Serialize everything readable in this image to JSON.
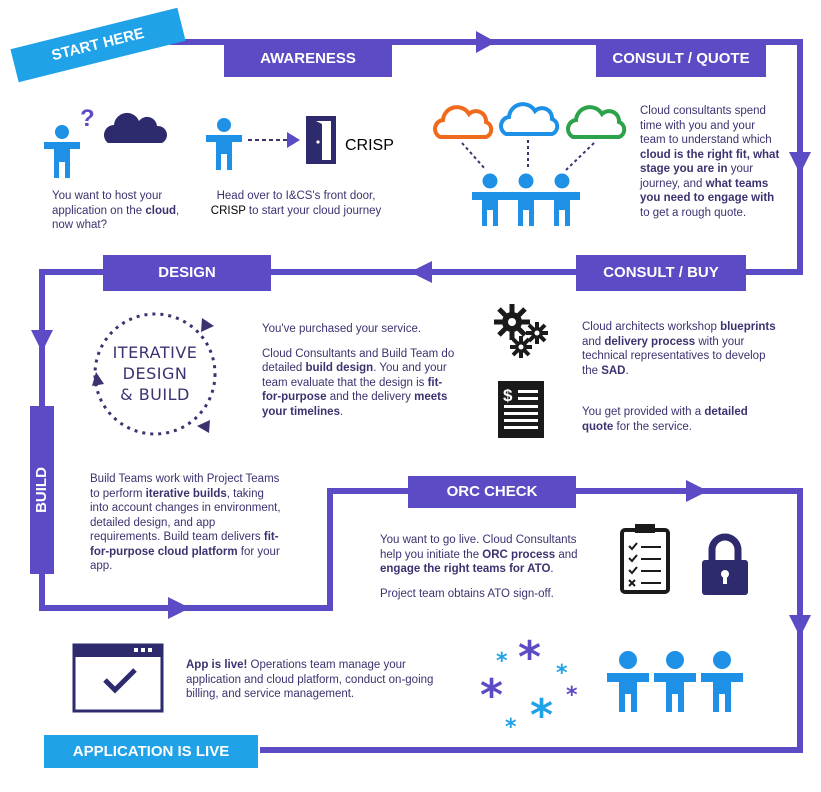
{
  "colors": {
    "purple": "#5b4bc4",
    "dark_text": "#3c3270",
    "blue": "#1e90e6",
    "cyan": "#1fa2e8",
    "orange": "#f06a1e",
    "green": "#2ca34a",
    "navy": "#2d2a6e"
  },
  "start_here": "START HERE",
  "stages": {
    "awareness": "AWARENESS",
    "consult_quote": "CONSULT / QUOTE",
    "consult_buy": "CONSULT / BUY",
    "design": "DESIGN",
    "build": "BUILD",
    "orc_check": "ORC CHECK",
    "application_live": "APPLICATION IS LIVE"
  },
  "awareness": {
    "q_mark": "?",
    "text1": {
      "a": "You want to host your application on the ",
      "b": "cloud",
      "c": ", now what?"
    },
    "crisp_label": "CRISP",
    "text2": {
      "a": "Head over to I&CS's front door,",
      "b": "CRISP",
      "c": " to start your cloud journey"
    }
  },
  "consult_quote": {
    "text": {
      "a": "Cloud consultants spend time with you and your team to understand which ",
      "b": "cloud is the right fit, what stage you are in",
      "c": " your journey, and ",
      "d": "what teams you need to engage with",
      "e": " to get a rough quote."
    }
  },
  "consult_buy": {
    "text1": {
      "a": "Cloud architects workshop ",
      "b": "blueprints",
      "c": " and ",
      "d": "delivery process",
      "e": " with your technical representatives to develop the ",
      "f": "SAD",
      "g": "."
    },
    "text2": {
      "a": "You get provided with a ",
      "b": "detailed quote",
      "c": " for the service."
    },
    "doc_symbol": "$"
  },
  "design": {
    "cycle_lines": [
      "ITERATIVE",
      "DESIGN",
      "& BUILD"
    ],
    "text1": "You've purchased your service.",
    "text2": {
      "a": "Cloud Consultants and Build Team do detailed ",
      "b": "build design",
      "c": ". You and your team evaluate that the design is ",
      "d": "fit-for-purpose",
      "e": " and the delivery ",
      "f": "meets your timelines",
      "g": "."
    }
  },
  "build": {
    "text": {
      "a": "Build Teams work with Project Teams to perform ",
      "b": "iterative builds",
      "c": ", taking into account changes in environment, detailed design, and app requirements. Build team delivers ",
      "d": "fit-for-purpose cloud platform",
      "e": " for your app."
    }
  },
  "orc": {
    "text1": {
      "a": "You want to go live. Cloud Consultants help you initiate the ",
      "b": "ORC process",
      "c": " and ",
      "d": "engage the  right teams for ATO",
      "e": "."
    },
    "text2": "Project team obtains ATO sign-off."
  },
  "live": {
    "text": {
      "a": "App is live!",
      "b": " Operations team manage your application and cloud platform, conduct on-going billing, and service management."
    }
  }
}
